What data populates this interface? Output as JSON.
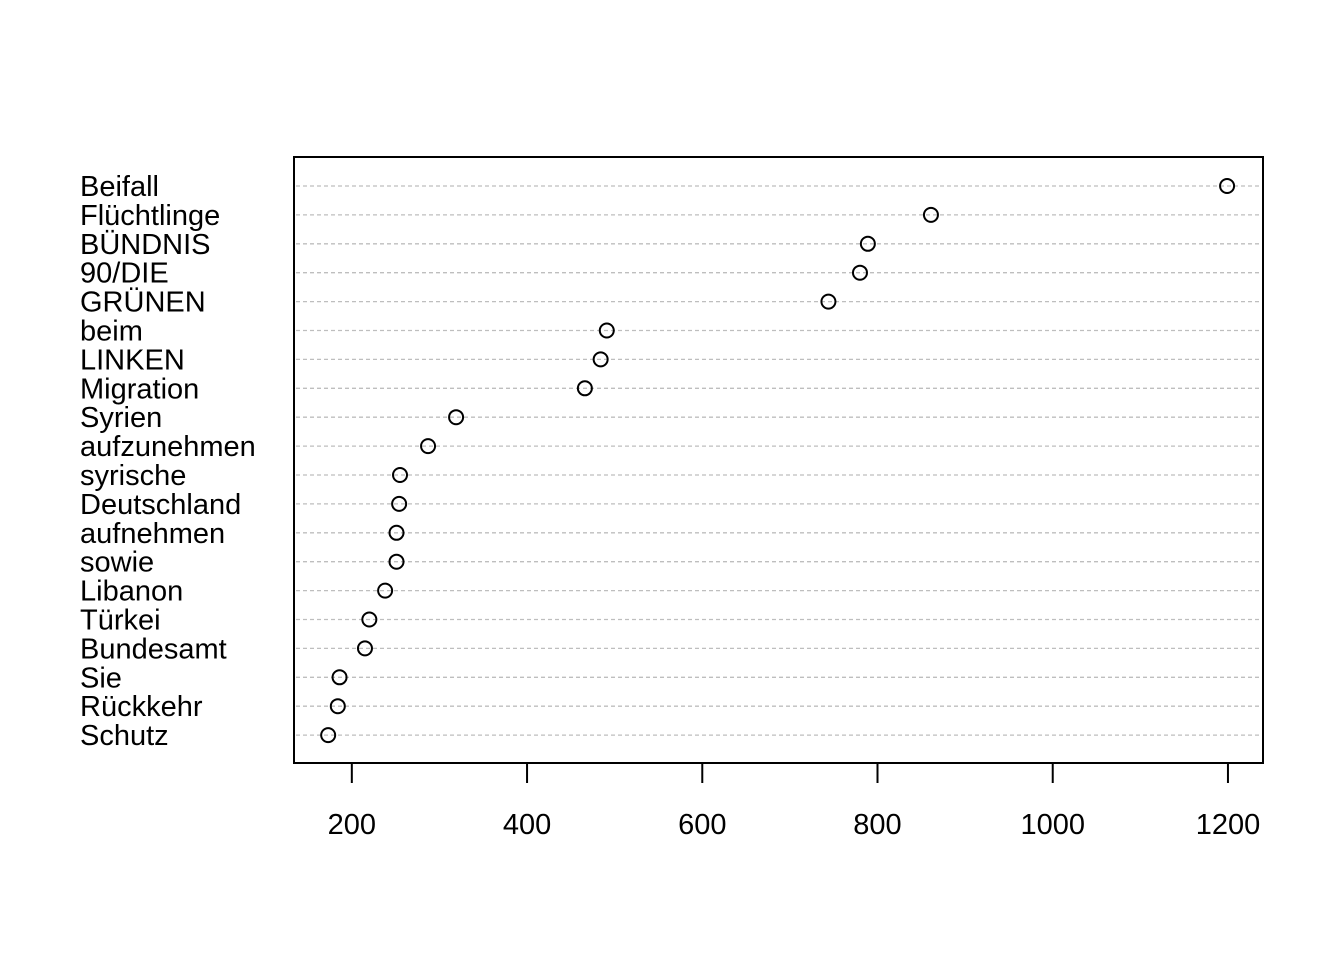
{
  "chart_data": {
    "type": "scatter",
    "subtype": "dotchart",
    "title": "",
    "xlabel": "",
    "ylabel": "",
    "categories": [
      "Beifall",
      "Flüchtlinge",
      "BÜNDNIS",
      "90/DIE",
      "GRÜNEN",
      "beim",
      "LINKEN",
      "Migration",
      "Syrien",
      "aufzunehmen",
      "syrische",
      "Deutschland",
      "aufnehmen",
      "sowie",
      "Libanon",
      "Türkei",
      "Bundesamt",
      "Sie",
      "Rückkehr",
      "Schutz"
    ],
    "values": [
      1199,
      861,
      789,
      780,
      744,
      491,
      484,
      466,
      319,
      287,
      255,
      254,
      251,
      251,
      238,
      220,
      215,
      186,
      184,
      173
    ],
    "xlim": [
      134,
      1240
    ],
    "xticks": [
      200,
      400,
      600,
      800,
      1000,
      1200
    ],
    "xtick_labels": [
      "200",
      "400",
      "600",
      "800",
      "1000",
      "1200"
    ],
    "grid": "dashed horizontal guide lines",
    "marker": "open circle",
    "colors": {
      "marker": "#000000",
      "guide": "#bebebe",
      "frame": "#000000"
    }
  }
}
